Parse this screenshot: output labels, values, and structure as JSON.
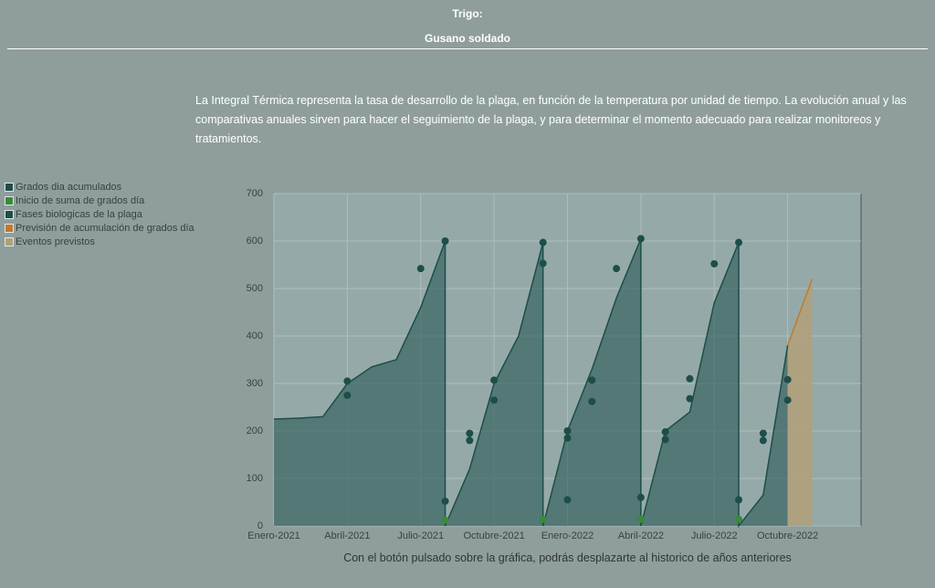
{
  "header": {
    "title": "Trigo:",
    "subtitle": "Gusano soldado"
  },
  "description": "La Integral Térmica representa la tasa de desarrollo de la plaga, en función de la temperatura por unidad de tiempo. La evolución anual y las comparativas anuales sirven para hacer el seguimiento de la plaga, y para determinar el momento adecuado para realizar monitoreos y tratamientos.",
  "chart_data": {
    "type": "line",
    "xlim": [
      "2021-01",
      "2023-01"
    ],
    "xticks": [
      {
        "value": "2021-01",
        "label": "Enero-2021"
      },
      {
        "value": "2021-04",
        "label": "Abril-2021"
      },
      {
        "value": "2021-07",
        "label": "Julio-2021"
      },
      {
        "value": "2021-10",
        "label": "Octubre-2021"
      },
      {
        "value": "2022-01",
        "label": "Enero-2022"
      },
      {
        "value": "2022-04",
        "label": "Abril-2022"
      },
      {
        "value": "2022-07",
        "label": "Julio-2022"
      },
      {
        "value": "2022-10",
        "label": "Octubre-2022"
      }
    ],
    "ylim": [
      0,
      700
    ],
    "yticks": [
      0,
      100,
      200,
      300,
      400,
      500,
      600,
      700
    ],
    "grid": true,
    "series": [
      {
        "name": "Grados dia acumulados",
        "color": "#1d4e4a",
        "style": "area",
        "x": [
          "2021-01",
          "2021-02",
          "2021-03",
          "2021-04",
          "2021-05",
          "2021-06",
          "2021-07",
          "2021-08",
          "2021-08",
          "2021-09",
          "2021-10",
          "2021-11",
          "2021-12",
          "2021-12",
          "2022-01",
          "2022-02",
          "2022-03",
          "2022-04",
          "2022-04",
          "2022-05",
          "2022-06",
          "2022-07",
          "2022-08",
          "2022-08",
          "2022-09",
          "2022-10"
        ],
        "values": [
          225,
          227,
          230,
          300,
          335,
          350,
          460,
          600,
          0,
          120,
          300,
          400,
          597,
          0,
          200,
          330,
          480,
          605,
          0,
          200,
          240,
          470,
          597,
          0,
          65,
          380
        ]
      },
      {
        "name": "Inicio de suma de grados día",
        "color": "#3a8a3a",
        "style": "points",
        "x": [
          "2021-08",
          "2021-12",
          "2022-04",
          "2022-08"
        ],
        "values": [
          12,
          14,
          14,
          14
        ]
      },
      {
        "name": "Fases biologicas de la plaga",
        "color": "#1d4e4a",
        "style": "points",
        "x": [
          "2021-04",
          "2021-04",
          "2021-07",
          "2021-08",
          "2021-08",
          "2021-09",
          "2021-09",
          "2021-10",
          "2021-10",
          "2021-12",
          "2021-12",
          "2022-01",
          "2022-01",
          "2022-01",
          "2022-02",
          "2022-02",
          "2022-03",
          "2022-04",
          "2022-04",
          "2022-05",
          "2022-05",
          "2022-06",
          "2022-06",
          "2022-07",
          "2022-08",
          "2022-08",
          "2022-09",
          "2022-09",
          "2022-10",
          "2022-10"
        ],
        "values": [
          275,
          305,
          542,
          600,
          52,
          180,
          195,
          265,
          307,
          553,
          597,
          55,
          185,
          200,
          262,
          307,
          542,
          605,
          60,
          182,
          198,
          268,
          310,
          552,
          597,
          55,
          180,
          195,
          265,
          308
        ]
      },
      {
        "name": "Previsión de acumulación de grados día",
        "color": "#c07a30",
        "style": "line",
        "x": [
          "2022-10",
          "2022-11"
        ],
        "values": [
          380,
          520
        ]
      },
      {
        "name": "Eventos previstos",
        "color": "#b0a07a",
        "style": "fill",
        "x": [
          "2022-10",
          "2022-11"
        ],
        "values": [
          380,
          520
        ]
      }
    ]
  },
  "caption": "Con el botón pulsado sobre la gráfica, podrás desplazarte al historico de años anteriores"
}
